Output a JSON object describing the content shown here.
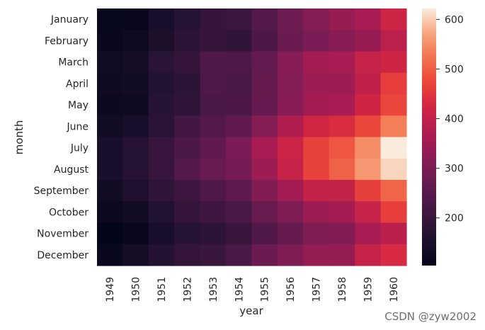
{
  "chart_data": {
    "type": "heatmap",
    "title": "",
    "xlabel": "year",
    "ylabel": "month",
    "x": [
      "1949",
      "1950",
      "1951",
      "1952",
      "1953",
      "1954",
      "1955",
      "1956",
      "1957",
      "1958",
      "1959",
      "1960"
    ],
    "y": [
      "January",
      "February",
      "March",
      "April",
      "May",
      "June",
      "July",
      "August",
      "September",
      "October",
      "November",
      "December"
    ],
    "values": [
      [
        112,
        115,
        145,
        171,
        196,
        204,
        242,
        284,
        315,
        340,
        360,
        417
      ],
      [
        118,
        126,
        150,
        180,
        196,
        188,
        233,
        277,
        301,
        318,
        342,
        391
      ],
      [
        132,
        141,
        178,
        193,
        236,
        235,
        267,
        317,
        356,
        362,
        406,
        419
      ],
      [
        129,
        135,
        163,
        181,
        235,
        227,
        269,
        313,
        348,
        348,
        396,
        461
      ],
      [
        121,
        125,
        172,
        183,
        229,
        234,
        270,
        318,
        355,
        363,
        420,
        472
      ],
      [
        135,
        149,
        178,
        218,
        243,
        264,
        315,
        374,
        422,
        435,
        472,
        535
      ],
      [
        148,
        170,
        199,
        230,
        264,
        302,
        364,
        413,
        465,
        491,
        548,
        622
      ],
      [
        148,
        170,
        199,
        242,
        272,
        293,
        347,
        405,
        467,
        505,
        559,
        606
      ],
      [
        136,
        158,
        184,
        209,
        237,
        259,
        312,
        355,
        404,
        404,
        463,
        508
      ],
      [
        119,
        133,
        162,
        191,
        211,
        229,
        274,
        306,
        347,
        359,
        407,
        461
      ],
      [
        104,
        114,
        146,
        172,
        180,
        203,
        237,
        271,
        305,
        310,
        362,
        390
      ],
      [
        118,
        140,
        166,
        194,
        201,
        229,
        278,
        306,
        336,
        337,
        405,
        432
      ]
    ],
    "colorbar": {
      "ticks": [
        200,
        300,
        400,
        500,
        600
      ],
      "vmin": 104,
      "vmax": 622,
      "cmap": "rocket"
    }
  },
  "watermark": "CSDN @zyw2002"
}
